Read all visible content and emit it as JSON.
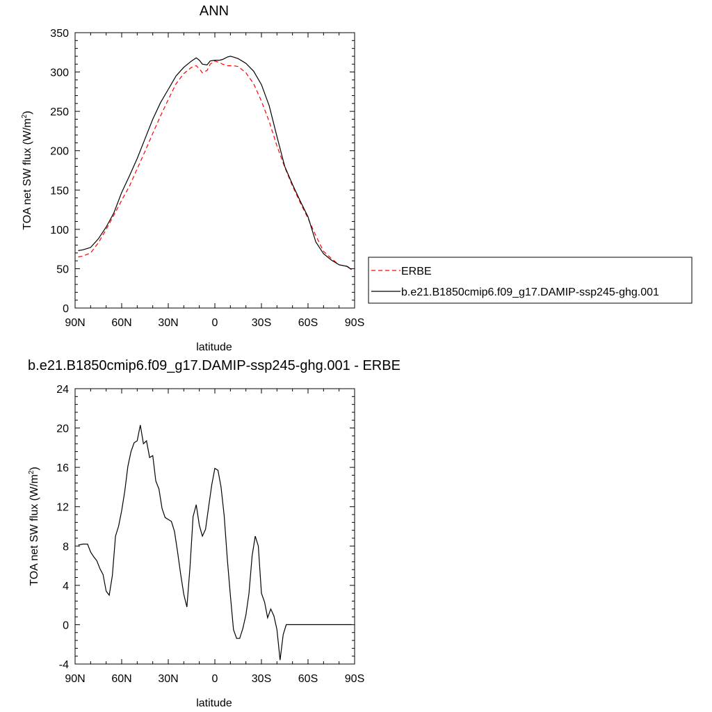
{
  "chart_data": [
    {
      "type": "line",
      "title": "ANN",
      "xlabel": "latitude",
      "ylabel": "TOA net SW flux (W/m",
      "ylabel_sup": "2",
      "ylabel_close": ")",
      "xlim": [
        90,
        -90
      ],
      "ylim": [
        0,
        350
      ],
      "xticks": [
        90,
        60,
        30,
        0,
        -30,
        -60,
        -90
      ],
      "xticklabels": [
        "90N",
        "60N",
        "30N",
        "0",
        "30S",
        "60S",
        "90S"
      ],
      "yticks": [
        0,
        50,
        100,
        150,
        200,
        250,
        300,
        350
      ],
      "yticklabels": [
        "0",
        "50",
        "100",
        "150",
        "200",
        "250",
        "300",
        "350"
      ],
      "grid": false,
      "legend_position": "right",
      "series": [
        {
          "name": "ERBE",
          "color": "#ff0000",
          "dash": "dashed",
          "x": [
            88,
            85,
            80,
            75,
            70,
            65,
            60,
            55,
            50,
            45,
            40,
            35,
            30,
            25,
            20,
            15,
            12,
            10,
            8,
            5,
            3,
            0,
            -3,
            -5,
            -8,
            -10,
            -12,
            -15,
            -20,
            -25,
            -30,
            -35,
            -40,
            -45,
            -50,
            -55,
            -60,
            -65,
            -70,
            -75,
            -80,
            -85,
            -88
          ],
          "values": [
            65,
            66,
            70,
            83,
            100,
            118,
            137,
            155,
            177,
            199,
            222,
            244,
            265,
            285,
            298,
            306,
            308,
            304,
            299,
            302,
            310,
            314,
            312,
            310,
            308,
            308,
            308,
            307,
            299,
            285,
            263,
            237,
            206,
            179,
            155,
            134,
            114,
            92,
            72,
            63,
            55,
            53,
            50
          ]
        },
        {
          "name": "b.e21.B1850cmip6.f09_g17.DAMIP-ssp245-ghg.001",
          "color": "#000000",
          "dash": "solid",
          "x": [
            88,
            85,
            80,
            75,
            70,
            65,
            60,
            55,
            50,
            45,
            40,
            35,
            30,
            25,
            20,
            15,
            12,
            10,
            8,
            5,
            3,
            0,
            -3,
            -5,
            -8,
            -10,
            -12,
            -15,
            -20,
            -25,
            -30,
            -35,
            -40,
            -45,
            -50,
            -55,
            -60,
            -65,
            -70,
            -75,
            -80,
            -85,
            -88
          ],
          "values": [
            73,
            74,
            77,
            88,
            103,
            121,
            147,
            168,
            190,
            215,
            240,
            261,
            278,
            295,
            306,
            314,
            318,
            315,
            310,
            309,
            314,
            315,
            315,
            316,
            319,
            320,
            319,
            317,
            311,
            301,
            284,
            257,
            218,
            180,
            157,
            136,
            116,
            84,
            69,
            61,
            55,
            53,
            49
          ]
        }
      ]
    },
    {
      "type": "line",
      "title": "b.e21.B1850cmip6.f09_g17.DAMIP-ssp245-ghg.001 - ERBE",
      "xlabel": "latitude",
      "ylabel": "TOA net SW flux (W/m",
      "ylabel_sup": "2",
      "ylabel_close": ")",
      "xlim": [
        90,
        -90
      ],
      "ylim": [
        -4,
        24
      ],
      "xticks": [
        90,
        60,
        30,
        0,
        -30,
        -60,
        -90
      ],
      "xticklabels": [
        "90N",
        "60N",
        "30N",
        "0",
        "30S",
        "60S",
        "90S"
      ],
      "yticks": [
        -4,
        0,
        4,
        8,
        12,
        16,
        20,
        24
      ],
      "yticklabels": [
        "-4",
        "0",
        "4",
        "8",
        "12",
        "16",
        "20",
        "24"
      ],
      "grid": false,
      "series": [
        {
          "color": "#000000",
          "dash": "solid",
          "x": [
            88,
            85,
            82,
            80,
            78,
            76,
            74,
            72,
            70,
            68,
            66,
            64,
            62,
            60,
            58,
            56,
            54,
            52,
            50,
            48,
            46,
            44,
            42,
            40,
            38,
            36,
            34,
            32,
            30,
            28,
            26,
            24,
            22,
            20,
            18,
            16,
            14,
            12,
            10,
            8,
            6,
            4,
            2,
            0,
            -2,
            -4,
            -6,
            -8,
            -10,
            -12,
            -14,
            -16,
            -18,
            -20,
            -22,
            -24,
            -26,
            -28,
            -30,
            -32,
            -34,
            -36,
            -38,
            -40,
            -42,
            -44,
            -46,
            -48,
            -50,
            -52,
            -54,
            -56,
            -58,
            -60,
            -62,
            -64,
            -66,
            -68,
            -70,
            -72,
            -74,
            -76,
            -78,
            -80,
            -82,
            -84,
            -86,
            -88
          ],
          "values": [
            8.1,
            8.2,
            8.2,
            7.4,
            6.9,
            6.5,
            5.7,
            5.1,
            3.4,
            3.0,
            5.0,
            9.0,
            10.0,
            11.6,
            13.6,
            16.1,
            17.6,
            18.5,
            18.7,
            20.3,
            18.4,
            18.7,
            17.0,
            17.2,
            14.6,
            13.8,
            11.8,
            10.9,
            10.7,
            10.5,
            9.5,
            7.4,
            5.1,
            3.1,
            1.8,
            5.9,
            11.0,
            12.2,
            10.1,
            9.0,
            9.7,
            12.0,
            14.2,
            15.9,
            15.7,
            14.0,
            11.1,
            6.7,
            3.0,
            -0.5,
            -1.4,
            -1.4,
            -0.4,
            1.0,
            3.2,
            7.0,
            9.0,
            8.0,
            3.2,
            2.3,
            0.7,
            1.6,
            0.9,
            -0.5,
            -3.6,
            -1.0,
            0,
            0,
            0,
            0,
            0,
            0,
            0,
            0,
            0,
            0,
            0,
            0,
            0,
            0,
            0,
            0,
            0,
            0,
            0,
            0,
            0,
            0
          ]
        }
      ]
    }
  ]
}
